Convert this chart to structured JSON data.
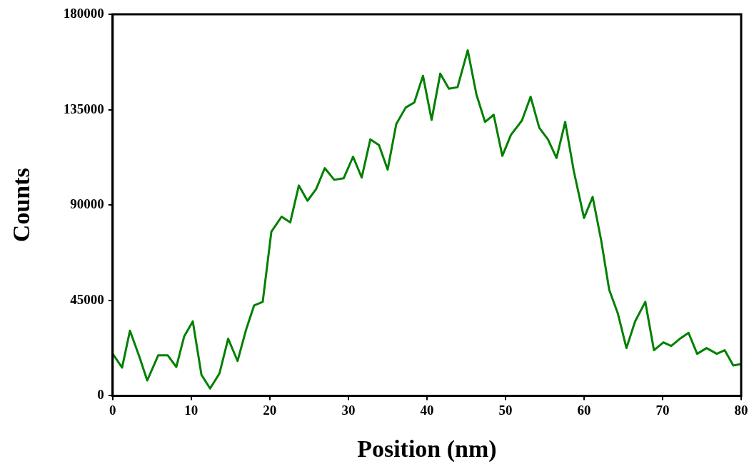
{
  "chart_data": {
    "type": "line",
    "xlabel": "Position (nm)",
    "ylabel": "Counts",
    "xlim": [
      0,
      80
    ],
    "xticks": [
      0,
      10,
      20,
      30,
      40,
      50,
      60,
      70,
      80
    ],
    "ylim": [
      0,
      180000
    ],
    "yticks": [
      0,
      45000,
      90000,
      135000,
      180000
    ],
    "grid": false,
    "legend": false,
    "marker": "none",
    "line_style": "solid",
    "x": [
      0,
      1.2,
      2.2,
      3.4,
      4.4,
      5.8,
      7.0,
      8.1,
      9.1,
      10.2,
      11.3,
      12.4,
      13.6,
      14.7,
      15.9,
      17.0,
      18.0,
      19.1,
      20.2,
      21.5,
      22.6,
      23.7,
      24.8,
      25.9,
      27.0,
      28.2,
      29.4,
      30.6,
      31.7,
      32.8,
      33.9,
      35.0,
      36.1,
      37.3,
      38.4,
      39.5,
      40.6,
      41.7,
      42.8,
      43.9,
      45.2,
      46.3,
      47.4,
      48.5,
      49.6,
      50.7,
      52.1,
      53.2,
      54.3,
      55.4,
      56.5,
      57.6,
      58.7,
      60.0,
      61.1,
      62.2,
      63.2,
      64.3,
      65.4,
      66.5,
      67.8,
      68.9,
      70.1,
      71.1,
      72.2,
      73.3,
      74.4,
      75.6,
      76.9,
      77.9,
      79.0,
      80
    ],
    "series": [
      {
        "color": "#008000",
        "values": [
          19800,
          13300,
          30700,
          18400,
          7200,
          19100,
          19100,
          13600,
          28000,
          35100,
          9900,
          3400,
          10600,
          26900,
          16400,
          31400,
          42600,
          44300,
          77400,
          84500,
          81800,
          99200,
          92000,
          97500,
          107400,
          101900,
          102600,
          112800,
          103000,
          121000,
          118300,
          106700,
          128200,
          136000,
          138400,
          151000,
          130200,
          152000,
          144900,
          145600,
          163000,
          142200,
          129200,
          132600,
          113200,
          123100,
          129900,
          141100,
          126500,
          121000,
          112200,
          129200,
          106000,
          83900,
          93800,
          73000,
          50100,
          38900,
          22500,
          35100,
          44300,
          21500,
          25200,
          23500,
          26900,
          29700,
          19800,
          22500,
          19800,
          21500,
          14300,
          15000
        ]
      }
    ]
  }
}
